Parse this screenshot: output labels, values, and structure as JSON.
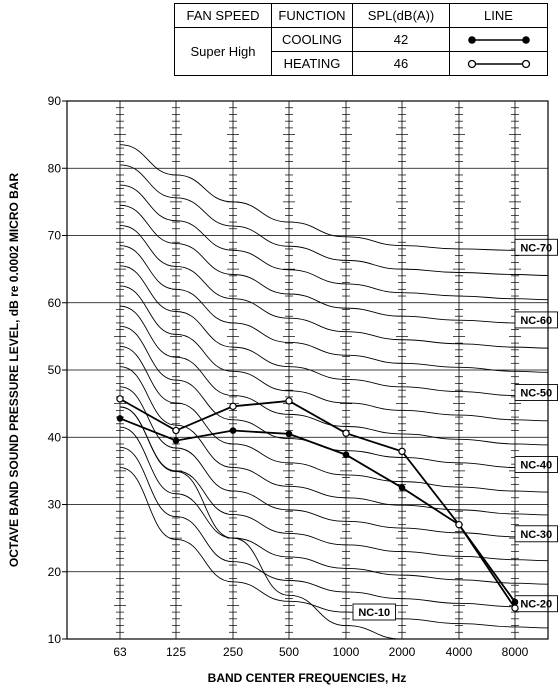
{
  "legend_table": {
    "headers": [
      "FAN SPEED",
      "FUNCTION",
      "SPL(dB(A))",
      "LINE"
    ],
    "fan_speed": "Super High",
    "rows": [
      {
        "function": "COOLING",
        "spl": "42",
        "line": "filled-dot-line"
      },
      {
        "function": "HEATING",
        "spl": "46",
        "line": "open-dot-line"
      }
    ]
  },
  "chart_data": {
    "type": "line",
    "title": "",
    "ylabel": "OCTAVE BAND SOUND PRESSURE LEVEL, dB re 0.0002 MICRO BAR",
    "xlabel": "BAND CENTER FREQUENCIES, Hz",
    "categories": [
      "63",
      "125",
      "250",
      "500",
      "1000",
      "2000",
      "4000",
      "8000"
    ],
    "ylim": [
      10,
      90
    ],
    "yticks": [
      10,
      20,
      30,
      40,
      50,
      60,
      70,
      80,
      90
    ],
    "grid": true,
    "series": [
      {
        "name": "COOLING",
        "marker": "filled",
        "values": [
          42.8,
          39.5,
          41.0,
          40.5,
          37.4,
          32.5,
          27.0,
          15.5
        ]
      },
      {
        "name": "HEATING",
        "marker": "open",
        "values": [
          45.7,
          41.0,
          44.6,
          45.4,
          40.6,
          37.9,
          27.0,
          14.6
        ]
      }
    ],
    "nc_curves": [
      {
        "label": "NC-70",
        "values": [
          83.5,
          79.0,
          75.0,
          72.0,
          69.8,
          68.5,
          68.0,
          67.8
        ]
      },
      {
        "label": "",
        "values": [
          80.5,
          75.6,
          71.4,
          68.4,
          66.3,
          65.0,
          64.5,
          64.2
        ]
      },
      {
        "label": "",
        "values": [
          77.5,
          72.2,
          67.8,
          64.9,
          62.8,
          61.5,
          61.0,
          60.6
        ]
      },
      {
        "label": "NC-60",
        "values": [
          74.5,
          68.8,
          64.2,
          61.3,
          59.2,
          58.0,
          57.4,
          57.0
        ]
      },
      {
        "label": "",
        "values": [
          71.5,
          65.4,
          60.6,
          57.7,
          55.7,
          54.5,
          53.9,
          53.4
        ]
      },
      {
        "label": "",
        "values": [
          68.5,
          62.0,
          57.0,
          54.1,
          52.2,
          51.0,
          50.4,
          49.8
        ]
      },
      {
        "label": "NC-50",
        "values": [
          65.5,
          58.7,
          53.4,
          50.5,
          48.6,
          47.5,
          46.8,
          46.2
        ]
      },
      {
        "label": "",
        "values": [
          62.5,
          55.3,
          49.8,
          46.9,
          45.1,
          44.0,
          43.3,
          42.6
        ]
      },
      {
        "label": "",
        "values": [
          59.5,
          51.9,
          46.2,
          43.4,
          41.6,
          40.5,
          39.7,
          39.0
        ]
      },
      {
        "label": "NC-40",
        "values": [
          56.5,
          48.5,
          42.6,
          39.8,
          38.0,
          37.0,
          36.2,
          35.5
        ]
      },
      {
        "label": "",
        "values": [
          53.5,
          45.1,
          39.0,
          36.2,
          34.4,
          33.4,
          32.6,
          32.0
        ]
      },
      {
        "label": "",
        "values": [
          50.5,
          41.8,
          35.5,
          32.7,
          31.0,
          29.9,
          29.2,
          28.6
        ]
      },
      {
        "label": "NC-30",
        "values": [
          47.5,
          38.4,
          32.0,
          29.2,
          27.5,
          26.5,
          25.8,
          25.2
        ]
      },
      {
        "label": "",
        "values": [
          44.5,
          35.0,
          28.5,
          25.7,
          24.0,
          23.0,
          22.3,
          21.8
        ]
      },
      {
        "label": "",
        "values": [
          41.5,
          31.6,
          25.0,
          22.2,
          20.5,
          19.5,
          18.8,
          18.3
        ]
      },
      {
        "label": "NC-20",
        "values": [
          38.5,
          28.2,
          21.5,
          18.7,
          17.0,
          16.0,
          15.3,
          14.8
        ]
      },
      {
        "label": "",
        "values": [
          35.5,
          24.8,
          18.5,
          15.6,
          14.0,
          13.0,
          12.3,
          11.8
        ]
      },
      {
        "label": "NC-10",
        "values": [
          44.5,
          34.9,
          25.0,
          16.5,
          12.0,
          10.0,
          null,
          null
        ]
      }
    ],
    "nc_label_positions": [
      "right",
      "right",
      "right",
      "right",
      "right",
      "right",
      "below-1000"
    ]
  }
}
